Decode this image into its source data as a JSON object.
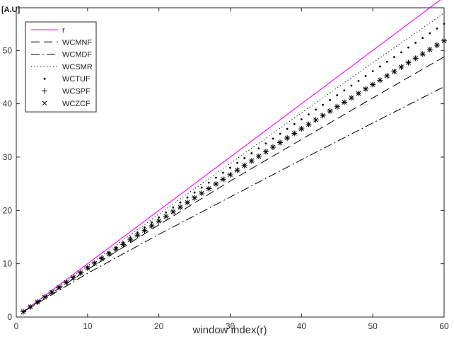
{
  "chart_data": {
    "type": "line",
    "title": "",
    "xlabel": "window index(r)",
    "ylabel": "[A.U]",
    "xlim": [
      0,
      60
    ],
    "ylim": [
      0,
      58
    ],
    "xticks": [
      0,
      10,
      20,
      30,
      40,
      50,
      60
    ],
    "yticks": [
      0,
      10,
      20,
      30,
      40,
      50
    ],
    "grid": false,
    "legend_position": "top-left",
    "x_range": [
      1,
      60
    ],
    "series": [
      {
        "name": "r",
        "style": "solid",
        "color": "#ff00ff",
        "points": [
          [
            1,
            1
          ],
          [
            60,
            60
          ]
        ]
      },
      {
        "name": "WCMNF",
        "style": "dashed",
        "color": "#000000",
        "points": [
          [
            1,
            1
          ],
          [
            10,
            8.9
          ],
          [
            20,
            17.3
          ],
          [
            30,
            25.5
          ],
          [
            40,
            33.3
          ],
          [
            50,
            41.1
          ],
          [
            60,
            48.8
          ]
        ]
      },
      {
        "name": "WCMDF",
        "style": "dashdot",
        "color": "#000000",
        "points": [
          [
            1,
            1
          ],
          [
            10,
            8.2
          ],
          [
            20,
            15.5
          ],
          [
            30,
            22.5
          ],
          [
            40,
            29.5
          ],
          [
            50,
            36.4
          ],
          [
            60,
            43.2
          ]
        ]
      },
      {
        "name": "WCSMR",
        "style": "dotted",
        "color": "#000000",
        "points": [
          [
            1,
            1
          ],
          [
            10,
            9.6
          ],
          [
            20,
            19.3
          ],
          [
            30,
            28.8
          ],
          [
            40,
            38.3
          ],
          [
            50,
            47.7
          ],
          [
            60,
            57.0
          ]
        ]
      },
      {
        "name": "WCTUF",
        "style": "point",
        "color": "#000000",
        "points": [
          [
            1,
            1
          ],
          [
            10,
            9.3
          ],
          [
            20,
            18.7
          ],
          [
            30,
            28.0
          ],
          [
            40,
            37.1
          ],
          [
            50,
            46.1
          ],
          [
            60,
            55.0
          ]
        ]
      },
      {
        "name": "WCSPF",
        "style": "plus",
        "color": "#000000",
        "points": [
          [
            1,
            1
          ],
          [
            10,
            9.2
          ],
          [
            20,
            18.0
          ],
          [
            30,
            26.7
          ],
          [
            40,
            35.3
          ],
          [
            50,
            43.6
          ],
          [
            60,
            51.8
          ]
        ]
      },
      {
        "name": "WCZCF",
        "style": "x",
        "color": "#000000",
        "points": [
          [
            1,
            1
          ],
          [
            10,
            9.2
          ],
          [
            20,
            18.0
          ],
          [
            30,
            26.7
          ],
          [
            40,
            35.3
          ],
          [
            50,
            43.6
          ],
          [
            60,
            51.8
          ]
        ]
      }
    ]
  }
}
